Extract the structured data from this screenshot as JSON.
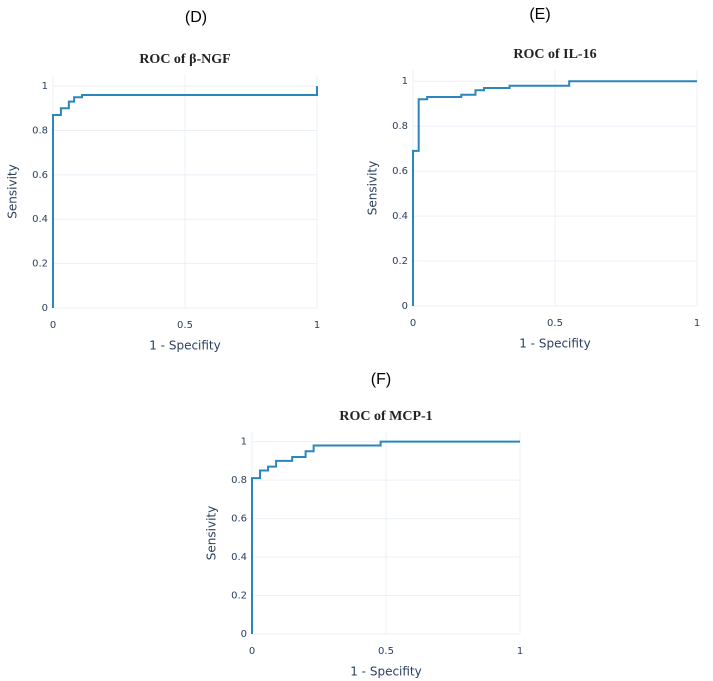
{
  "chart_data": [
    {
      "type": "line",
      "panel_label": "(D)",
      "title": "ROC of β-NGF",
      "x_label": "1 - Specifity",
      "y_label": "Sensivity",
      "xlim": [
        0,
        1
      ],
      "ylim": [
        0,
        1.05
      ],
      "xticks": [
        0,
        0.5,
        1
      ],
      "yticks": [
        0,
        0.2,
        0.4,
        0.6,
        0.8,
        1
      ],
      "grid": true,
      "series": [
        {
          "color": "#2a86bb",
          "x": [
            0,
            0,
            0.03,
            0.03,
            0.06,
            0.06,
            0.08,
            0.08,
            0.11,
            0.11,
            1,
            1
          ],
          "values": [
            0,
            0.87,
            0.87,
            0.9,
            0.9,
            0.93,
            0.93,
            0.95,
            0.95,
            0.96,
            0.96,
            1
          ]
        }
      ]
    },
    {
      "type": "line",
      "panel_label": "(E)",
      "title": "ROC of IL-16",
      "x_label": "1 - Specifity",
      "y_label": "Sensivity",
      "xlim": [
        0,
        1
      ],
      "ylim": [
        0,
        1.05
      ],
      "xticks": [
        0,
        0.5,
        1
      ],
      "yticks": [
        0,
        0.2,
        0.4,
        0.6,
        0.8,
        1
      ],
      "grid": true,
      "series": [
        {
          "color": "#2a86bb",
          "x": [
            0,
            0,
            0.02,
            0.02,
            0.05,
            0.05,
            0.17,
            0.17,
            0.22,
            0.22,
            0.25,
            0.25,
            0.34,
            0.34,
            0.55,
            0.55,
            1
          ],
          "values": [
            0,
            0.69,
            0.69,
            0.92,
            0.92,
            0.93,
            0.93,
            0.94,
            0.94,
            0.96,
            0.96,
            0.97,
            0.97,
            0.98,
            0.98,
            1,
            1
          ]
        }
      ]
    },
    {
      "type": "line",
      "panel_label": "(F)",
      "title": "ROC of MCP-1",
      "x_label": "1 - Specifity",
      "y_label": "Sensivity",
      "xlim": [
        0,
        1
      ],
      "ylim": [
        0,
        1.05
      ],
      "xticks": [
        0,
        0.5,
        1
      ],
      "yticks": [
        0,
        0.2,
        0.4,
        0.6,
        0.8,
        1
      ],
      "grid": true,
      "series": [
        {
          "color": "#2a86bb",
          "x": [
            0,
            0,
            0.03,
            0.03,
            0.06,
            0.06,
            0.09,
            0.09,
            0.15,
            0.15,
            0.2,
            0.2,
            0.23,
            0.23,
            0.48,
            0.48,
            1
          ],
          "values": [
            0,
            0.81,
            0.81,
            0.85,
            0.85,
            0.87,
            0.87,
            0.9,
            0.9,
            0.92,
            0.92,
            0.95,
            0.95,
            0.98,
            0.98,
            1,
            1
          ]
        }
      ]
    }
  ]
}
